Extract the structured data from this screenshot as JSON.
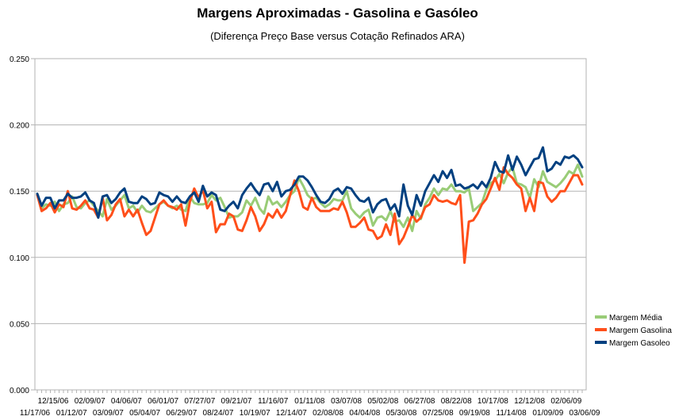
{
  "chart_data": {
    "type": "line",
    "title": "Margens Aproximadas - Gasolina e Gasóleo",
    "subtitle": "(Diferença Preço Base versus Cotação Refinados ARA)",
    "ylim": [
      0,
      0.25
    ],
    "yticks": [
      "0.000",
      "0.050",
      "0.100",
      "0.150",
      "0.200",
      "0.250"
    ],
    "grid": true,
    "legend_position": "right",
    "x_tick_labels_upper": [
      "12/15/06",
      "02/09/07",
      "04/06/07",
      "06/01/07",
      "07/27/07",
      "09/21/07",
      "11/16/07",
      "01/11/08",
      "03/07/08",
      "05/02/08",
      "06/27/08",
      "08/22/08",
      "10/17/08",
      "12/12/08",
      "02/06/09"
    ],
    "x_tick_labels_lower": [
      "11/17/06",
      "01/12/07",
      "03/09/07",
      "05/04/07",
      "06/29/07",
      "08/24/07",
      "10/19/07",
      "12/14/07",
      "02/08/08",
      "04/04/08",
      "05/30/08",
      "07/25/08",
      "09/19/08",
      "11/14/08",
      "01/09/09",
      "03/06/09"
    ],
    "series": [
      {
        "name": "Margem Média",
        "color": "#99cc77",
        "values": [
          0.148,
          0.137,
          0.14,
          0.139,
          0.142,
          0.135,
          0.14,
          0.141,
          0.146,
          0.138,
          0.137,
          0.141,
          0.143,
          0.139,
          0.135,
          0.131,
          0.144,
          0.136,
          0.139,
          0.143,
          0.147,
          0.137,
          0.139,
          0.134,
          0.139,
          0.135,
          0.134,
          0.137,
          0.14,
          0.142,
          0.139,
          0.137,
          0.139,
          0.136,
          0.135,
          0.146,
          0.141,
          0.14,
          0.14,
          0.141,
          0.147,
          0.143,
          0.145,
          0.138,
          0.13,
          0.131,
          0.131,
          0.134,
          0.143,
          0.139,
          0.145,
          0.137,
          0.133,
          0.146,
          0.14,
          0.142,
          0.138,
          0.142,
          0.147,
          0.15,
          0.16,
          0.154,
          0.147,
          0.144,
          0.145,
          0.141,
          0.138,
          0.14,
          0.144,
          0.143,
          0.143,
          0.15,
          0.137,
          0.133,
          0.13,
          0.134,
          0.136,
          0.124,
          0.13,
          0.131,
          0.128,
          0.135,
          0.127,
          0.128,
          0.123,
          0.13,
          0.12,
          0.135,
          0.129,
          0.14,
          0.145,
          0.152,
          0.147,
          0.152,
          0.151,
          0.155,
          0.15,
          0.15,
          0.149,
          0.152,
          0.135,
          0.138,
          0.141,
          0.151,
          0.156,
          0.158,
          0.163,
          0.156,
          0.164,
          0.168,
          0.156,
          0.155,
          0.153,
          0.145,
          0.159,
          0.153,
          0.165,
          0.157,
          0.155,
          0.153,
          0.156,
          0.16,
          0.165,
          0.163,
          0.17,
          0.161
        ]
      },
      {
        "name": "Margem Gasolina",
        "color": "#ff4f1a",
        "values": [
          0.147,
          0.135,
          0.137,
          0.141,
          0.134,
          0.14,
          0.138,
          0.15,
          0.137,
          0.136,
          0.139,
          0.143,
          0.137,
          0.136,
          0.13,
          0.145,
          0.128,
          0.132,
          0.14,
          0.144,
          0.131,
          0.136,
          0.131,
          0.136,
          0.126,
          0.117,
          0.12,
          0.13,
          0.14,
          0.143,
          0.139,
          0.138,
          0.136,
          0.14,
          0.124,
          0.142,
          0.152,
          0.145,
          0.151,
          0.137,
          0.142,
          0.119,
          0.125,
          0.125,
          0.133,
          0.131,
          0.121,
          0.12,
          0.128,
          0.138,
          0.131,
          0.12,
          0.125,
          0.133,
          0.13,
          0.136,
          0.13,
          0.135,
          0.147,
          0.158,
          0.15,
          0.138,
          0.136,
          0.145,
          0.138,
          0.135,
          0.135,
          0.135,
          0.137,
          0.136,
          0.142,
          0.134,
          0.123,
          0.123,
          0.126,
          0.13,
          0.121,
          0.12,
          0.114,
          0.116,
          0.125,
          0.117,
          0.133,
          0.11,
          0.115,
          0.123,
          0.132,
          0.127,
          0.13,
          0.138,
          0.14,
          0.147,
          0.143,
          0.142,
          0.143,
          0.141,
          0.14,
          0.147,
          0.096,
          0.127,
          0.128,
          0.133,
          0.14,
          0.144,
          0.152,
          0.16,
          0.151,
          0.168,
          0.163,
          0.16,
          0.155,
          0.152,
          0.135,
          0.145,
          0.135,
          0.157,
          0.156,
          0.146,
          0.142,
          0.145,
          0.15,
          0.15,
          0.156,
          0.162,
          0.162,
          0.155
        ]
      },
      {
        "name": "Margem Gasoleo",
        "color": "#004080",
        "values": [
          0.148,
          0.139,
          0.145,
          0.145,
          0.137,
          0.143,
          0.143,
          0.148,
          0.145,
          0.145,
          0.146,
          0.149,
          0.143,
          0.141,
          0.13,
          0.146,
          0.147,
          0.141,
          0.144,
          0.149,
          0.152,
          0.142,
          0.141,
          0.141,
          0.146,
          0.144,
          0.14,
          0.141,
          0.149,
          0.147,
          0.146,
          0.142,
          0.146,
          0.142,
          0.141,
          0.146,
          0.149,
          0.142,
          0.154,
          0.146,
          0.149,
          0.147,
          0.136,
          0.135,
          0.139,
          0.142,
          0.137,
          0.147,
          0.152,
          0.156,
          0.151,
          0.147,
          0.155,
          0.156,
          0.15,
          0.157,
          0.146,
          0.15,
          0.151,
          0.155,
          0.161,
          0.161,
          0.158,
          0.153,
          0.147,
          0.142,
          0.141,
          0.144,
          0.15,
          0.152,
          0.148,
          0.153,
          0.152,
          0.147,
          0.143,
          0.142,
          0.145,
          0.134,
          0.14,
          0.143,
          0.144,
          0.136,
          0.14,
          0.131,
          0.155,
          0.139,
          0.132,
          0.147,
          0.139,
          0.15,
          0.156,
          0.162,
          0.157,
          0.165,
          0.16,
          0.166,
          0.154,
          0.155,
          0.152,
          0.153,
          0.155,
          0.152,
          0.157,
          0.153,
          0.16,
          0.172,
          0.165,
          0.164,
          0.177,
          0.166,
          0.176,
          0.17,
          0.162,
          0.168,
          0.174,
          0.175,
          0.183,
          0.165,
          0.167,
          0.172,
          0.17,
          0.176,
          0.175,
          0.177,
          0.174,
          0.168
        ]
      }
    ]
  }
}
